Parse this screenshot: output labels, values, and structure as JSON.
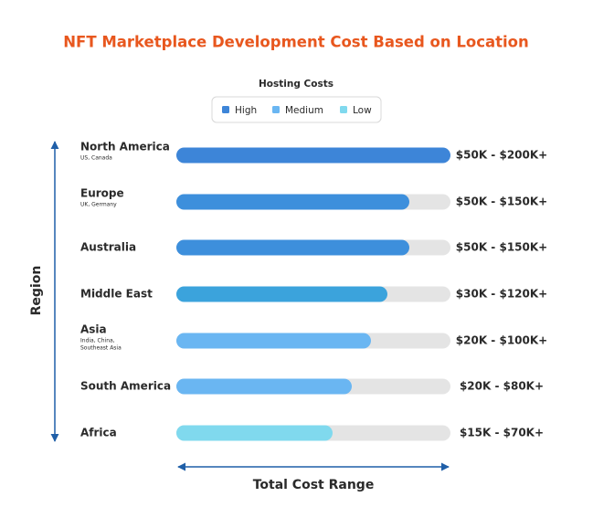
{
  "chart_data": {
    "type": "bar",
    "orientation": "horizontal",
    "title": "NFT Marketplace Development Cost Based on Location",
    "legend_title": "Hosting Costs",
    "legend": [
      {
        "name": "High",
        "color": "#3d85d8"
      },
      {
        "name": "Medium",
        "color": "#6ab6f2"
      },
      {
        "name": "Low",
        "color": "#80d9ee"
      }
    ],
    "y_label": "Region",
    "x_label": "Total Cost Range",
    "categories": [
      "North America",
      "Europe",
      "Australia",
      "Middle East",
      "Asia",
      "South America",
      "Africa"
    ],
    "sublabels": [
      [
        "US, Canada"
      ],
      [
        "UK, Germany"
      ],
      null,
      null,
      [
        "India, China,",
        "Southeast Asia"
      ],
      null,
      null
    ],
    "values": [
      100,
      85,
      85,
      77,
      71,
      64,
      57
    ],
    "ranges": [
      "$50K - $200K+",
      "$50K - $150K+",
      "$50K - $150K+",
      "$30K - $120K+",
      "$20K - $100K+",
      "$20K - $80K+",
      "$15K - $70K+"
    ],
    "colors": [
      "#3d85d8",
      "#3d8fdc",
      "#3d8fdc",
      "#3ba3dc",
      "#6ab6f2",
      "#6ab6f2",
      "#80d9ee"
    ],
    "xlim": [
      0,
      100
    ]
  }
}
